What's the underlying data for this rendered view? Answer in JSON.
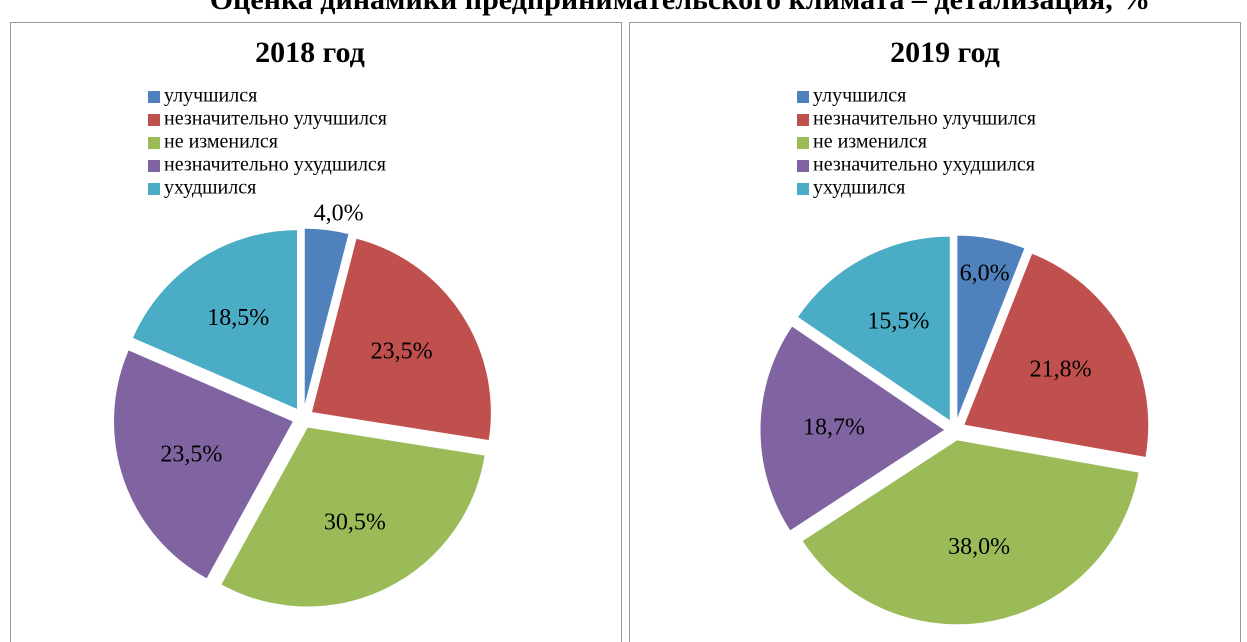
{
  "title": "Оценка динамики предпринимательского климата – детализация, %",
  "chart_data": [
    {
      "type": "pie",
      "title": "2018 год",
      "categories": [
        "улучшился",
        "незначительно улучшился",
        "не изменился",
        "незначительно ухудшился",
        "ухудшился"
      ],
      "values": [
        4.0,
        23.5,
        30.5,
        23.5,
        18.5
      ],
      "value_labels": [
        "4,0%",
        "23,5%",
        "30,5%",
        "23,5%",
        "18,5%"
      ],
      "colors": [
        "#4f81bd",
        "#c0504d",
        "#9bbb59",
        "#8064a2",
        "#4bacc6"
      ]
    },
    {
      "type": "pie",
      "title": "2019 год",
      "categories": [
        "улучшился",
        "незначительно улучшился",
        "не изменился",
        "незначительно ухудшился",
        "ухудшился"
      ],
      "values": [
        6.0,
        21.8,
        38.0,
        18.7,
        15.5
      ],
      "value_labels": [
        "6,0%",
        "21,8%",
        "38,0%",
        "18,7%",
        "15,5%"
      ],
      "colors": [
        "#4f81bd",
        "#c0504d",
        "#9bbb59",
        "#8064a2",
        "#4bacc6"
      ]
    }
  ]
}
